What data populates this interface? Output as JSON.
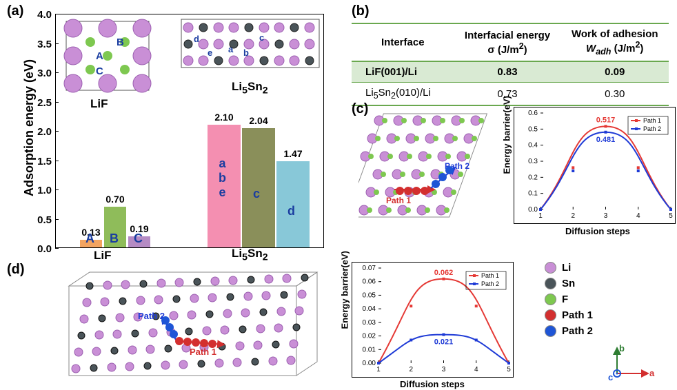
{
  "panelA": {
    "label": "(a)",
    "ylabel": "Adsorption energy (eV)",
    "ylim": [
      0,
      4.0
    ],
    "ytick_step": 0.5,
    "yticks": [
      "0.0",
      "0.5",
      "1.0",
      "1.5",
      "2.0",
      "2.5",
      "3.0",
      "3.5",
      "4.0"
    ],
    "groups": [
      {
        "name": "LiF",
        "bars": [
          {
            "letter": "A",
            "value": 0.13,
            "color": "#f4a460"
          },
          {
            "letter": "B",
            "value": 0.7,
            "color": "#8fbc5a"
          },
          {
            "letter": "C",
            "value": 0.19,
            "color": "#b58bc4"
          }
        ]
      },
      {
        "name": "Li₅Sn₂",
        "bars": [
          {
            "letter": "a\nb\ne",
            "value": 2.1,
            "color": "#f48fb1"
          },
          {
            "letter": "c",
            "value": 2.04,
            "color": "#8a8f5a"
          },
          {
            "letter": "d",
            "value": 1.47,
            "color": "#88c8d8"
          }
        ]
      }
    ],
    "inset_letters_lif": [
      "A",
      "B",
      "C"
    ],
    "inset_letters_lisn": [
      "a",
      "b",
      "c",
      "d",
      "e"
    ]
  },
  "panelB": {
    "label": "(b)",
    "columns": [
      "Interface",
      "Interfacial energy\nσ (J/m²)",
      "Work of adhesion\nW_adh (J/m²)"
    ],
    "col_html": [
      "Interface",
      "Interfacial energy<br>σ (J/m<sup>2</sup>)",
      "Work of adhesion<br><i>W<sub>adh</sub></i> (J/m<sup>2</sup>)"
    ],
    "rows": [
      [
        "LiF(001)/Li",
        "0.83",
        "0.09"
      ],
      [
        "Li₅Sn₂(010)/Li",
        "0.73",
        "0.30"
      ]
    ]
  },
  "panelC": {
    "label": "(c)",
    "chart": {
      "ylabel": "Energy barrier(eV)",
      "xlabel": "Diffusion steps",
      "ylim": [
        0,
        0.6
      ],
      "ytick_step": 0.1,
      "yticks": [
        "0.0",
        "0.1",
        "0.2",
        "0.3",
        "0.4",
        "0.5",
        "0.6"
      ],
      "xlim": [
        1,
        5
      ],
      "xticks": [
        "1",
        "2",
        "3",
        "4",
        "5"
      ],
      "series": [
        {
          "name": "Path 1",
          "color": "#e53935",
          "peak": 0.517,
          "points": [
            0,
            0.26,
            0.517,
            0.26,
            0
          ]
        },
        {
          "name": "Path 2",
          "color": "#1e3ad6",
          "peak": 0.481,
          "points": [
            0,
            0.24,
            0.481,
            0.24,
            0
          ]
        }
      ]
    },
    "path1_label": "Path 1",
    "path2_label": "Path 2"
  },
  "panelD": {
    "label": "(d)",
    "chart": {
      "ylabel": "Energy barrier(eV)",
      "xlabel": "Diffusion steps",
      "ylim": [
        0,
        0.07
      ],
      "ytick_step": 0.01,
      "yticks": [
        "0.00",
        "0.01",
        "0.02",
        "0.03",
        "0.04",
        "0.05",
        "0.06",
        "0.07"
      ],
      "xlim": [
        1,
        5
      ],
      "xticks": [
        "1",
        "2",
        "3",
        "4",
        "5"
      ],
      "series": [
        {
          "name": "Path 1",
          "color": "#e53935",
          "peak": 0.062,
          "points": [
            0,
            0.042,
            0.062,
            0.042,
            0
          ]
        },
        {
          "name": "Path 2",
          "color": "#1e3ad6",
          "peak": 0.021,
          "points": [
            0,
            0.017,
            0.021,
            0.017,
            0
          ]
        }
      ]
    },
    "path1_label": "Path 1",
    "path2_label": "Path 2"
  },
  "legend": {
    "items": [
      {
        "name": "Li",
        "color": "#c98fd6"
      },
      {
        "name": "Sn",
        "color": "#4a5459"
      },
      {
        "name": "F",
        "color": "#7ec850"
      },
      {
        "name": "Path 1",
        "color": "#d32f2f"
      },
      {
        "name": "Path 2",
        "color": "#1e55d6"
      }
    ],
    "axes": {
      "a": "a",
      "b": "b",
      "c": "c",
      "a_color": "#d32f2f",
      "b_color": "#2e7d32",
      "c_color": "#1e55d6"
    }
  },
  "colors": {
    "li": "#c98fd6",
    "sn": "#4a5459",
    "f": "#7ec850",
    "li_light": "#dda8e8",
    "li_border": "#9b5fb0"
  }
}
